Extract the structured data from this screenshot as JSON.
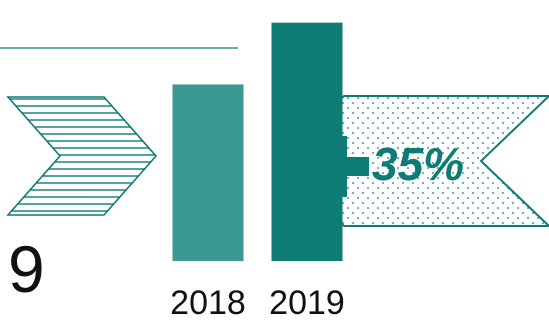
{
  "chart_data": {
    "type": "bar",
    "categories": [
      "2018",
      "2019"
    ],
    "values": [
      100,
      135
    ],
    "ylim": [
      0,
      145
    ],
    "title": "",
    "xlabel": "",
    "ylabel": "",
    "grid": false,
    "legend": "none",
    "change_label": "35%",
    "change_sign": "plus",
    "partial_digit": "9",
    "colors": {
      "bar_2018": "#3a9a92",
      "bar_2019": "#0e7c74",
      "accent": "#0e7c74"
    }
  }
}
